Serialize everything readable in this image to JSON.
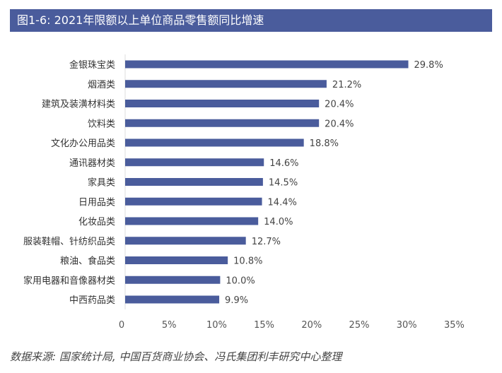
{
  "title": "图1-6: 2021年限额以上单位商品零售额同比增速",
  "source": "数据来源: 国家统计局, 中国百货商业协会、冯氏集团利丰研究中心整理",
  "colors": {
    "bar": "#4a5c9c",
    "title_bg": "#4a5c9c"
  },
  "chart_data": {
    "type": "bar",
    "orientation": "horizontal",
    "title": "图1-6: 2021年限额以上单位商品零售额同比增速",
    "categories": [
      "金银珠宝类",
      "烟酒类",
      "建筑及装潢材料类",
      "饮料类",
      "文化办公用品类",
      "通讯器材类",
      "家具类",
      "日用品类",
      "化妆品类",
      "服装鞋帽、针纺织品类",
      "粮油、食品类",
      "家用电器和音像器材类",
      "中西药品类"
    ],
    "values": [
      29.8,
      21.2,
      20.4,
      20.4,
      18.8,
      14.6,
      14.5,
      14.4,
      14.0,
      12.7,
      10.8,
      10.0,
      9.9
    ],
    "data_labels": [
      "29.8%",
      "21.2%",
      "20.4%",
      "20.4%",
      "18.8%",
      "14.6%",
      "14.5%",
      "14.4%",
      "14.0%",
      "12.7%",
      "10.8%",
      "10.0%",
      "9.9%"
    ],
    "xlim": [
      0,
      35
    ],
    "xticks": [
      0,
      5,
      10,
      15,
      20,
      25,
      30,
      35
    ],
    "xtick_labels": [
      "0",
      "5%",
      "10%",
      "15%",
      "20%",
      "25%",
      "30%",
      "35%"
    ],
    "xlabel": "",
    "ylabel": "",
    "grid": false,
    "legend": "none"
  }
}
